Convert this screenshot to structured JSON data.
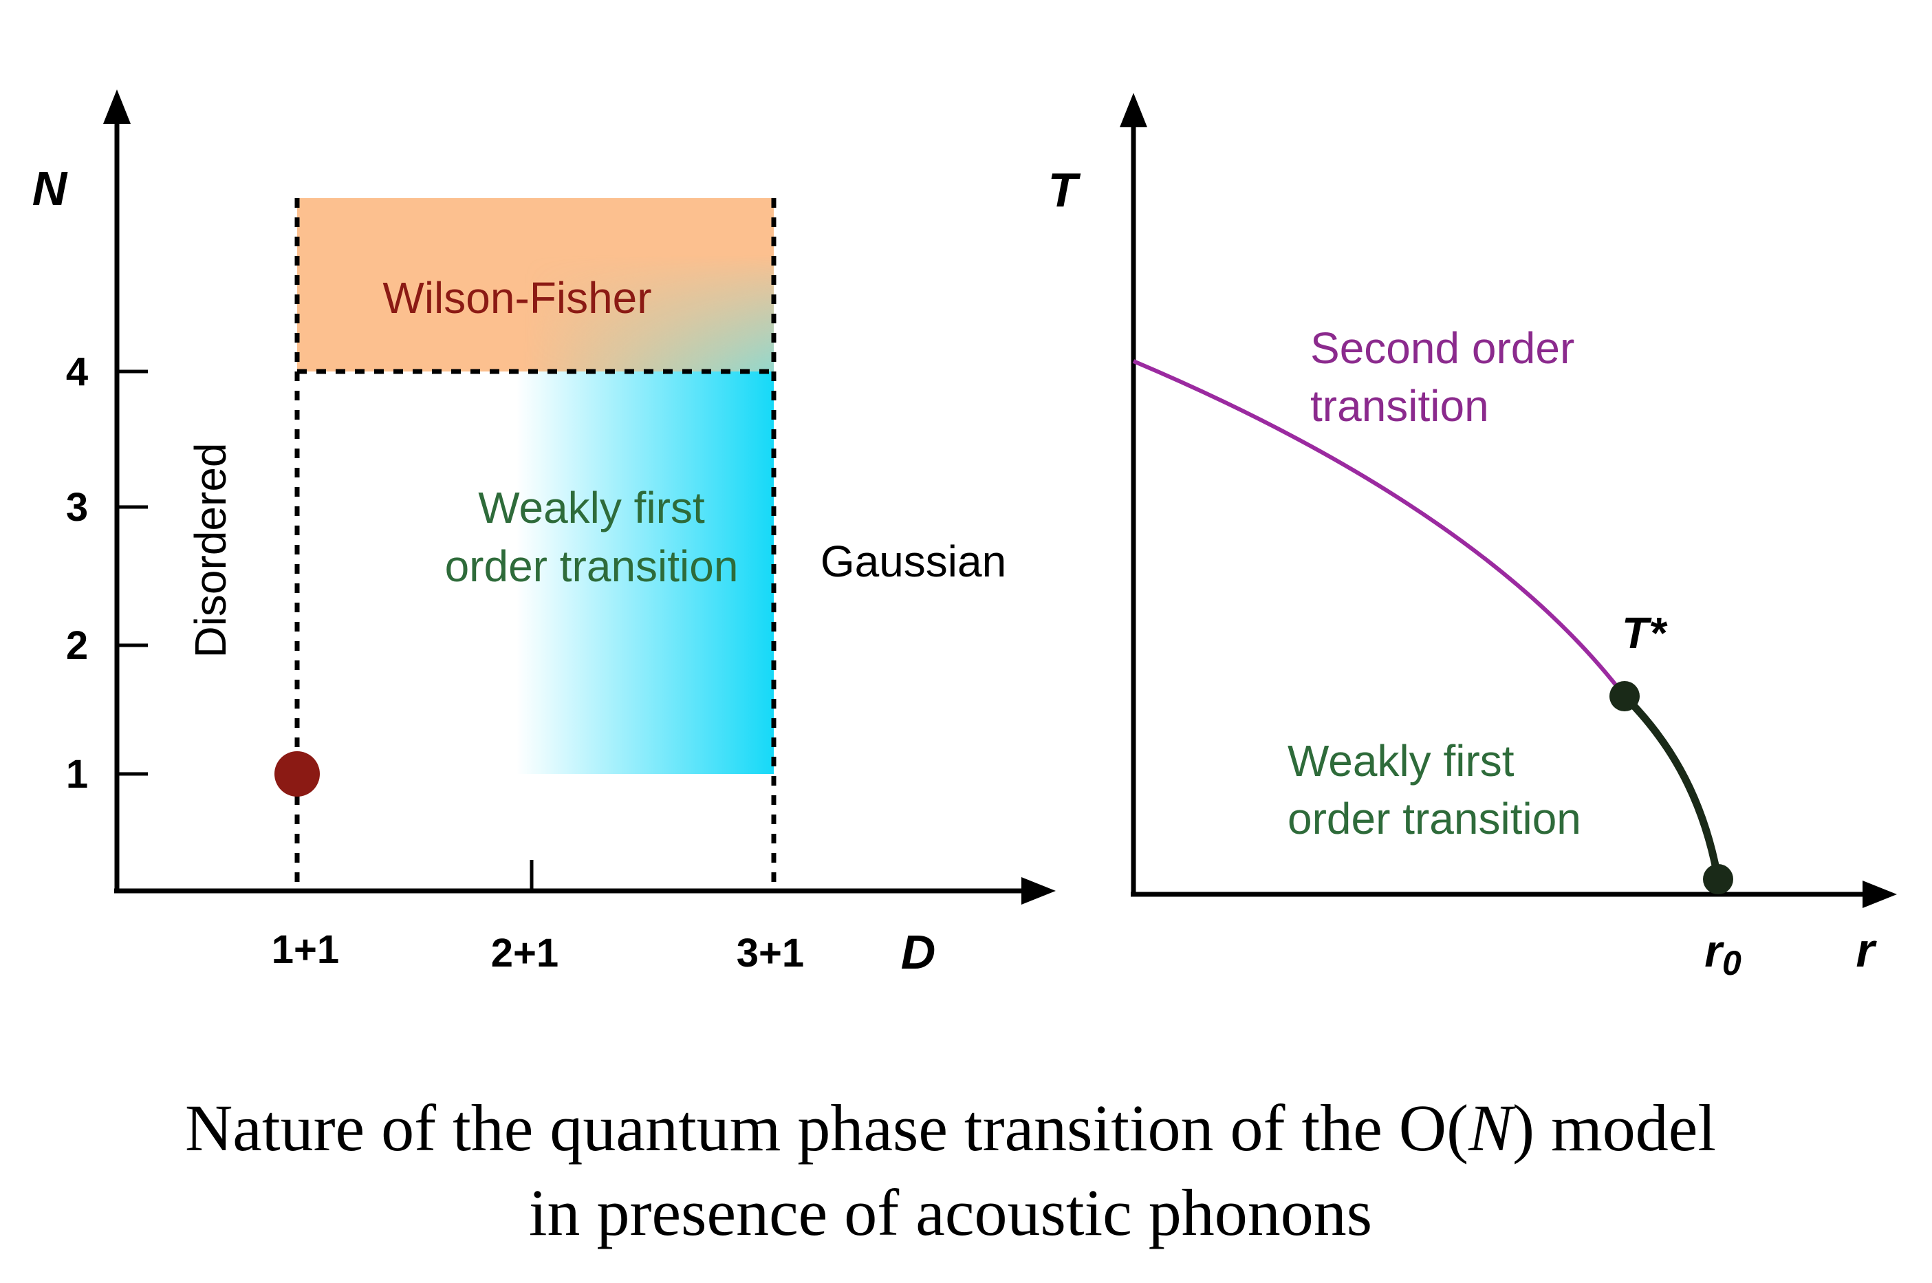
{
  "left_panel": {
    "y_axis_label": "N",
    "x_axis_label": "D",
    "y_ticks": [
      "1",
      "2",
      "3",
      "4"
    ],
    "x_ticks": [
      "1+1",
      "2+1",
      "3+1"
    ],
    "regions": {
      "wilson_fisher": "Wilson-Fisher",
      "weakly_first_line1": "Weakly first",
      "weakly_first_line2": "order transition",
      "gaussian": "Gaussian",
      "disordered": "Disordered"
    },
    "colors": {
      "wilson_fisher_fill": "#fcc08f",
      "weakly_first_fill": "#16d9f8",
      "point": "#8b1a14"
    }
  },
  "right_panel": {
    "y_axis_label": "T",
    "x_axis_label": "r",
    "x_tick": "r0",
    "critical_point_label": "T*",
    "regions": {
      "second_order_line1": "Second order",
      "second_order_line2": "transition",
      "weakly_first_line1": "Weakly first",
      "weakly_first_line2": "order transition"
    },
    "colors": {
      "second_order_curve": "#9b2aa0",
      "first_order_curve": "#1a2a18"
    }
  },
  "caption": {
    "line1_prefix": "Nature of the quantum phase transition of the O(",
    "line1_italic": "N",
    "line1_suffix": ") model",
    "line2": "in presence of acoustic phonons"
  }
}
